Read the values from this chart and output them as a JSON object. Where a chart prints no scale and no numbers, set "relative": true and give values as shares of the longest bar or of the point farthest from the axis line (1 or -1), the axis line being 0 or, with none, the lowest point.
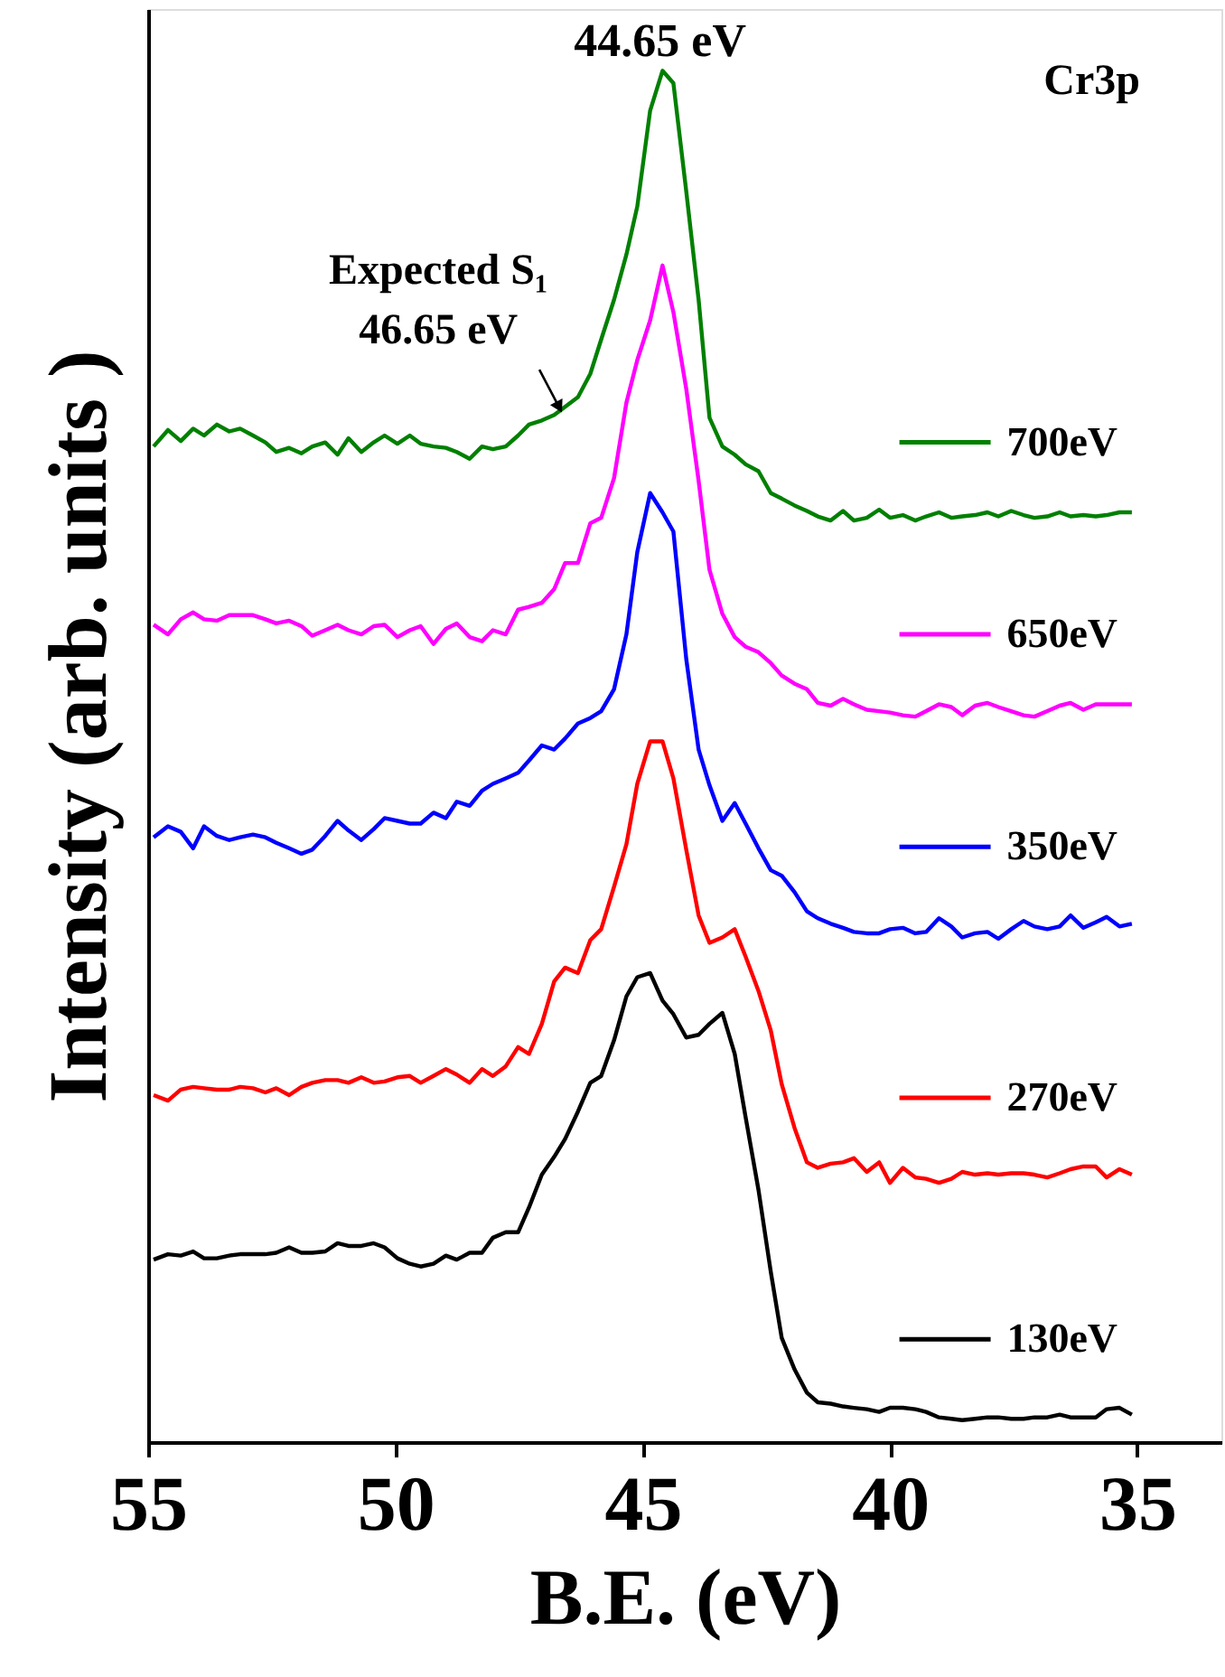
{
  "chart_data": {
    "type": "line",
    "relative": true,
    "xlabel": "B.E. (eV)",
    "ylabel": "Intensity (arb. units )",
    "xlim": [
      55,
      33.3
    ],
    "xticks": [
      55,
      50,
      45,
      40,
      35
    ],
    "grid": false,
    "legend": "right",
    "line_style": "solid",
    "x": [
      54.89,
      54.6,
      54.34,
      54.09,
      53.87,
      53.61,
      53.36,
      53.14,
      52.88,
      52.63,
      52.41,
      52.15,
      51.9,
      51.68,
      51.42,
      51.17,
      50.95,
      50.69,
      50.44,
      50.22,
      49.96,
      49.71,
      49.49,
      49.23,
      48.98,
      48.76,
      48.5,
      48.25,
      48.03,
      47.77,
      47.52,
      47.3,
      47.04,
      46.79,
      46.57,
      46.31,
      46.06,
      45.84,
      45.58,
      45.33,
      45.11,
      44.85,
      44.6,
      44.38,
      44.12,
      43.87,
      43.65,
      43.39,
      43.14,
      42.92,
      42.66,
      42.41,
      42.19,
      41.93,
      41.68,
      41.46,
      41.2,
      40.95,
      40.73,
      40.47,
      40.22,
      40.0,
      39.74,
      39.49,
      39.27,
      39.01,
      38.76,
      38.54,
      38.28,
      38.03,
      37.81,
      37.55,
      37.3,
      37.08,
      36.82,
      36.57,
      36.35,
      36.09,
      35.84,
      35.62,
      35.36,
      35.11
    ],
    "series": [
      {
        "name": "700eV",
        "color": "#008000",
        "values": [
          0.726,
          0.738,
          0.73,
          0.739,
          0.734,
          0.742,
          0.737,
          0.739,
          0.734,
          0.729,
          0.722,
          0.725,
          0.721,
          0.726,
          0.729,
          0.72,
          0.732,
          0.722,
          0.729,
          0.734,
          0.728,
          0.734,
          0.728,
          0.726,
          0.725,
          0.722,
          0.717,
          0.726,
          0.724,
          0.726,
          0.734,
          0.742,
          0.745,
          0.749,
          0.755,
          0.762,
          0.779,
          0.804,
          0.833,
          0.866,
          0.901,
          0.971,
          1.0,
          0.991,
          0.912,
          0.833,
          0.747,
          0.726,
          0.72,
          0.713,
          0.708,
          0.692,
          0.688,
          0.683,
          0.679,
          0.675,
          0.672,
          0.679,
          0.672,
          0.674,
          0.68,
          0.674,
          0.676,
          0.672,
          0.675,
          0.678,
          0.674,
          0.675,
          0.676,
          0.678,
          0.675,
          0.679,
          0.676,
          0.674,
          0.675,
          0.678,
          0.675,
          0.676,
          0.675,
          0.676,
          0.678,
          0.678
        ]
      },
      {
        "name": "650eV",
        "color": "#ff00ff",
        "values": [
          0.596,
          0.589,
          0.6,
          0.605,
          0.6,
          0.599,
          0.603,
          0.603,
          0.603,
          0.6,
          0.597,
          0.599,
          0.595,
          0.588,
          0.592,
          0.596,
          0.592,
          0.589,
          0.595,
          0.596,
          0.587,
          0.592,
          0.595,
          0.582,
          0.593,
          0.597,
          0.587,
          0.584,
          0.592,
          0.589,
          0.607,
          0.609,
          0.612,
          0.622,
          0.641,
          0.641,
          0.67,
          0.674,
          0.703,
          0.758,
          0.789,
          0.818,
          0.858,
          0.824,
          0.768,
          0.701,
          0.636,
          0.604,
          0.587,
          0.58,
          0.576,
          0.568,
          0.559,
          0.553,
          0.549,
          0.539,
          0.537,
          0.542,
          0.538,
          0.534,
          0.533,
          0.532,
          0.53,
          0.529,
          0.533,
          0.538,
          0.536,
          0.53,
          0.537,
          0.539,
          0.536,
          0.533,
          0.53,
          0.529,
          0.533,
          0.537,
          0.539,
          0.534,
          0.538,
          0.538,
          0.538,
          0.538
        ]
      },
      {
        "name": "350eV",
        "color": "#0000ff",
        "values": [
          0.441,
          0.449,
          0.445,
          0.433,
          0.449,
          0.442,
          0.439,
          0.441,
          0.443,
          0.441,
          0.437,
          0.433,
          0.429,
          0.432,
          0.442,
          0.453,
          0.446,
          0.439,
          0.447,
          0.455,
          0.453,
          0.451,
          0.451,
          0.459,
          0.455,
          0.467,
          0.464,
          0.475,
          0.48,
          0.484,
          0.488,
          0.497,
          0.508,
          0.505,
          0.513,
          0.524,
          0.528,
          0.533,
          0.549,
          0.589,
          0.649,
          0.692,
          0.678,
          0.664,
          0.571,
          0.505,
          0.479,
          0.453,
          0.466,
          0.451,
          0.433,
          0.417,
          0.413,
          0.401,
          0.387,
          0.382,
          0.378,
          0.375,
          0.372,
          0.371,
          0.371,
          0.374,
          0.375,
          0.371,
          0.372,
          0.382,
          0.376,
          0.368,
          0.371,
          0.372,
          0.367,
          0.374,
          0.38,
          0.376,
          0.374,
          0.376,
          0.384,
          0.375,
          0.379,
          0.383,
          0.376,
          0.378
        ]
      },
      {
        "name": "270eV",
        "color": "#ff0000",
        "values": [
          0.253,
          0.249,
          0.257,
          0.259,
          0.258,
          0.257,
          0.257,
          0.259,
          0.258,
          0.255,
          0.258,
          0.253,
          0.259,
          0.262,
          0.264,
          0.264,
          0.262,
          0.266,
          0.262,
          0.263,
          0.266,
          0.267,
          0.262,
          0.267,
          0.272,
          0.268,
          0.262,
          0.272,
          0.267,
          0.274,
          0.288,
          0.283,
          0.305,
          0.336,
          0.346,
          0.342,
          0.366,
          0.374,
          0.405,
          0.436,
          0.48,
          0.511,
          0.511,
          0.484,
          0.432,
          0.384,
          0.364,
          0.368,
          0.374,
          0.354,
          0.329,
          0.3,
          0.261,
          0.229,
          0.204,
          0.2,
          0.203,
          0.204,
          0.207,
          0.197,
          0.204,
          0.189,
          0.2,
          0.193,
          0.192,
          0.189,
          0.192,
          0.197,
          0.195,
          0.196,
          0.195,
          0.196,
          0.196,
          0.195,
          0.193,
          0.196,
          0.199,
          0.201,
          0.201,
          0.193,
          0.199,
          0.195
        ]
      },
      {
        "name": "130eV",
        "color": "#000000",
        "values": [
          0.133,
          0.137,
          0.136,
          0.139,
          0.134,
          0.134,
          0.136,
          0.137,
          0.137,
          0.137,
          0.138,
          0.142,
          0.138,
          0.138,
          0.139,
          0.145,
          0.143,
          0.143,
          0.145,
          0.142,
          0.134,
          0.13,
          0.128,
          0.13,
          0.136,
          0.133,
          0.138,
          0.138,
          0.149,
          0.153,
          0.153,
          0.171,
          0.195,
          0.208,
          0.221,
          0.241,
          0.262,
          0.267,
          0.293,
          0.325,
          0.339,
          0.342,
          0.322,
          0.312,
          0.295,
          0.297,
          0.305,
          0.313,
          0.283,
          0.237,
          0.184,
          0.124,
          0.076,
          0.053,
          0.036,
          0.029,
          0.028,
          0.026,
          0.025,
          0.024,
          0.022,
          0.025,
          0.025,
          0.024,
          0.022,
          0.018,
          0.017,
          0.016,
          0.017,
          0.018,
          0.018,
          0.017,
          0.017,
          0.018,
          0.018,
          0.02,
          0.018,
          0.018,
          0.018,
          0.024,
          0.025,
          0.02
        ]
      }
    ],
    "annotations": [
      {
        "text": "44.65 eV",
        "x": 44.65,
        "y": 1.0
      },
      {
        "text": "Expected S₁\n46.65 eV",
        "x": 46.65,
        "y": 0.75
      },
      "Cr3p"
    ]
  }
}
